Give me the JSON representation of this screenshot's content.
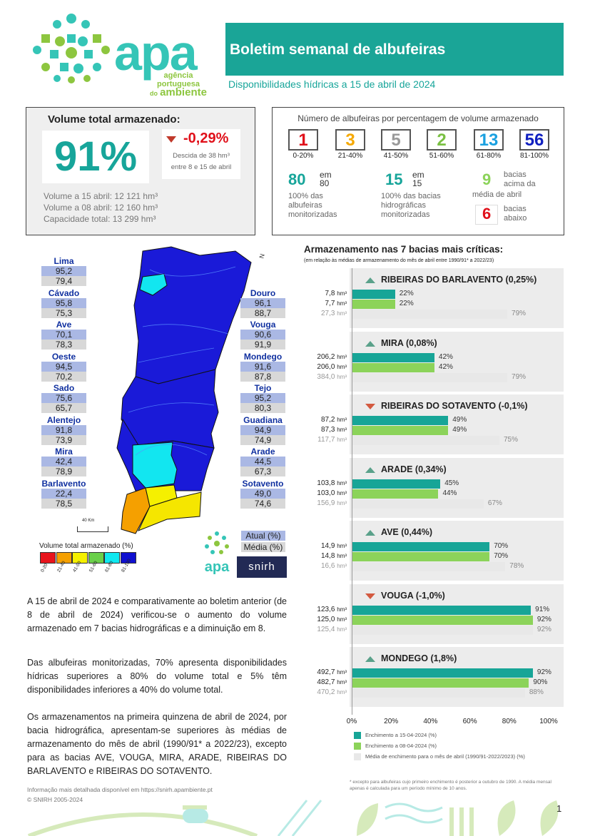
{
  "header": {
    "title": "Boletim semanal de albufeiras",
    "subtitle": "Disponibilidades hídricas a 15 de abril de 2024",
    "logo_text": "apa",
    "logo_sub1": "agência portuguesa",
    "logo_sub2": "do",
    "logo_sub3": "ambiente"
  },
  "volume": {
    "heading": "Volume total armazenado:",
    "pct": "91%",
    "change": "-0,29%",
    "change_note1": "Descida de 38 hm³",
    "change_note2": "entre 8 e 15 de abril",
    "line1": "Volume a 15 abril: 12 121 hm³",
    "line2": "Volume a 08 abril: 12 160 hm³",
    "line3": "Capacidade total: 13 299 hm³"
  },
  "counts": {
    "heading": "Número de albufeiras por percentagem de volume armazenado",
    "items": [
      {
        "n": "1",
        "label": "0-20%",
        "color": "#e0101a"
      },
      {
        "n": "3",
        "label": "21-40%",
        "color": "#f5a800"
      },
      {
        "n": "5",
        "label": "41-50%",
        "color": "#9a9a9a"
      },
      {
        "n": "2",
        "label": "51-60%",
        "color": "#7ac043"
      },
      {
        "n": "13",
        "label": "61-80%",
        "color": "#1aa0e0"
      },
      {
        "n": "56",
        "label": "81-100%",
        "color": "#1020c0"
      }
    ],
    "a_num": "80",
    "a_em": "em",
    "a_of": "80",
    "a_txt1": "100% das",
    "a_txt2": "albufeiras",
    "a_txt3": "monitorizadas",
    "b_num": "15",
    "b_em": "em",
    "b_of": "15",
    "b_txt1": "100% das bacias",
    "b_txt2": "hidrográficas",
    "b_txt3": "monitorizadas",
    "c_num": "9",
    "c_txt1": "bacias",
    "c_txt2": "acima da",
    "c_txt3": "média de abril",
    "d_num": "6",
    "d_txt1": "bacias",
    "d_txt2": "abaixo"
  },
  "map": {
    "left": [
      {
        "name": "Lima",
        "act": "95,2",
        "med": "79,4"
      },
      {
        "name": "Cávado",
        "act": "95,8",
        "med": "75,3"
      },
      {
        "name": "Ave",
        "act": "70,1",
        "med": "78,3"
      },
      {
        "name": "Oeste",
        "act": "94,5",
        "med": "70,2"
      },
      {
        "name": "Sado",
        "act": "75,6",
        "med": "65,7"
      },
      {
        "name": "Alentejo",
        "act": "91,8",
        "med": "73,9"
      },
      {
        "name": "Mira",
        "act": "42,4",
        "med": "78,9"
      },
      {
        "name": "Barlavento",
        "act": "22,4",
        "med": "78,5"
      }
    ],
    "right": [
      {
        "name": "Douro",
        "act": "96,1",
        "med": "88,7"
      },
      {
        "name": "Vouga",
        "act": "90,6",
        "med": "91,9"
      },
      {
        "name": "Mondego",
        "act": "91,6",
        "med": "87,8"
      },
      {
        "name": "Tejo",
        "act": "95,2",
        "med": "80,3"
      },
      {
        "name": "Guadiana",
        "act": "94,9",
        "med": "74,9"
      },
      {
        "name": "Arade",
        "act": "44,5",
        "med": "67,3"
      },
      {
        "name": "Sotavento",
        "act": "49,0",
        "med": "74,6"
      }
    ],
    "scale": "40 Km",
    "legend_title": "Volume total armazenado (%)",
    "legend": [
      {
        "label": "0-20",
        "color": "#e8141c"
      },
      {
        "label": "21-40",
        "color": "#f5a000"
      },
      {
        "label": "41-50",
        "color": "#f5f000"
      },
      {
        "label": "51-60",
        "color": "#6ad04a"
      },
      {
        "label": "61-80",
        "color": "#10e8f0"
      },
      {
        "label": "81-100",
        "color": "#1010d0"
      }
    ],
    "key_act": "Atual (%)",
    "key_med": "Média (%)",
    "north": "N",
    "snirh": "snirh"
  },
  "chart_data": {
    "type": "bar",
    "title": "Armazenamento nas 7 bacias mais críticas:",
    "subtitle": "(em relação às médias de armazenamento do mês de abril entre 1990/91* a 2022/23)",
    "xlim": [
      0,
      100
    ],
    "xticks": [
      "0%",
      "20%",
      "40%",
      "60%",
      "80%",
      "100%"
    ],
    "series_names": [
      "Enchimento a 15-04-2024 (%)",
      "Enchimento a 08-04-2024 (%)",
      "Média de enchimento para o mês de abril (1990/91-2022/2023) (%)"
    ],
    "colors": [
      "#17a597",
      "#8cd35a",
      "#e8e8e8"
    ],
    "groups": [
      {
        "name": "RIBEIRAS DO BARLAVENTO (0,25%)",
        "trend": "up",
        "vols": [
          "7,8",
          "7,7",
          "27,3"
        ],
        "values": [
          22,
          22,
          79
        ]
      },
      {
        "name": "MIRA (0,08%)",
        "trend": "up",
        "vols": [
          "206,2",
          "206,0",
          "384,0"
        ],
        "values": [
          42,
          42,
          79
        ]
      },
      {
        "name": "RIBEIRAS DO SOTAVENTO (-0,1%)",
        "trend": "down",
        "vols": [
          "87,2",
          "87,3",
          "117,7"
        ],
        "values": [
          49,
          49,
          75
        ]
      },
      {
        "name": "ARADE (0,34%)",
        "trend": "up",
        "vols": [
          "103,8",
          "103,0",
          "156,9"
        ],
        "values": [
          45,
          44,
          67
        ]
      },
      {
        "name": "AVE (0,44%)",
        "trend": "up",
        "vols": [
          "14,9",
          "14,8",
          "16,6"
        ],
        "values": [
          70,
          70,
          78
        ]
      },
      {
        "name": "VOUGA (-1,0%)",
        "trend": "down",
        "vols": [
          "123,6",
          "125,0",
          "125,4"
        ],
        "values": [
          91,
          92,
          92
        ]
      },
      {
        "name": "MONDEGO (1,8%)",
        "trend": "up",
        "vols": [
          "492,7",
          "482,7",
          "470,2"
        ],
        "values": [
          92,
          90,
          88
        ]
      }
    ],
    "unit": "hm³"
  },
  "text": {
    "p1": "A 15 de abril de 2024 e comparativamente ao boletim anterior (de 8 de abril de 2024) verificou-se o aumento do volume armazenado em 7 bacias hidrográficas e a diminuição em 8.",
    "p2": "Das albufeiras monitorizadas, 70% apresenta disponibilidades hídricas superiores a 80% do volume total e 5% têm disponibilidades inferiores a 40% do volume total.",
    "p3": "Os armazenamentos na primeira quinzena de abril de 2024, por bacia hidrográfica, apresentam-se superiores às médias de armazenamento do mês de abril (1990/91* a 2022/23), excepto para as bacias AVE, VOUGA, MIRA, ARADE, RIBEIRAS DO BARLAVENTO e RIBEIRAS DO SOTAVENTO."
  },
  "footer": {
    "info": "Informação mais detalhada disponível em https://snirh.apambiente.pt",
    "copy": "© SNIRH 2005-2024",
    "note": "* excepto para albufeiras cujo primeiro enchimento é posterior a outubro de 1990. A média mensal apenas é calculada para um período mínimo de 10 anos.",
    "page": "1"
  }
}
